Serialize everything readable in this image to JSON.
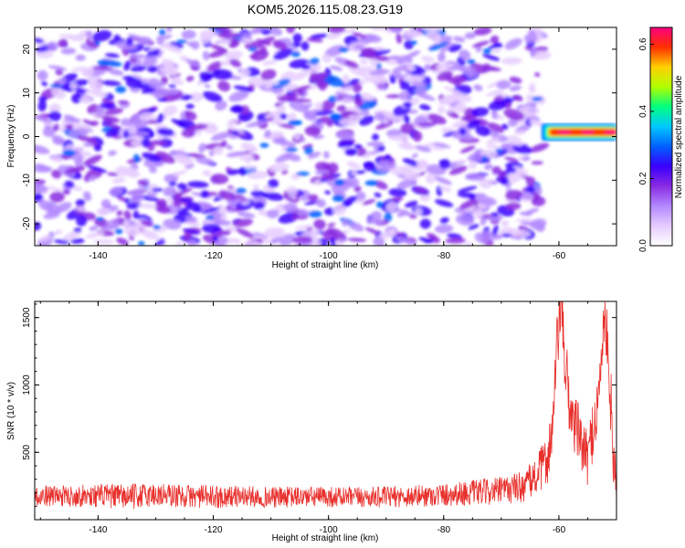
{
  "title": "KOM5.2026.115.08.23.G19",
  "colors": {
    "snr_line": "#e8302c",
    "spectrogram_background": "#ffffff",
    "colormap": [
      "#ffffff",
      "#e6ccff",
      "#b388ff",
      "#8a2be2",
      "#3a00ff",
      "#0060ff",
      "#00c8ff",
      "#00ff80",
      "#b0ff00",
      "#ffd000",
      "#ff3000",
      "#ff0080"
    ]
  },
  "chart_data": [
    {
      "type": "heatmap",
      "title": "KOM5.2026.115.08.23.G19",
      "xlabel": "Height of straight line (km)",
      "ylabel": "Frequency (Hz)",
      "xlim": [
        -151,
        -50
      ],
      "ylim": [
        -25,
        25
      ],
      "xticks": [
        -140,
        -120,
        -100,
        -80,
        -60
      ],
      "yticks": [
        -20,
        -10,
        0,
        10,
        20
      ],
      "x_tick_labels": [
        "-140",
        "-120",
        "-100",
        "-80",
        "-60"
      ],
      "y_tick_labels": [
        "-20",
        "-10",
        "0",
        "10",
        "20"
      ],
      "colorbar": {
        "label": "Normalized spectral amplitude",
        "range": [
          0.0,
          0.65
        ],
        "ticks": [
          0.0,
          0.2,
          0.4,
          0.6
        ],
        "tick_labels": [
          "0.0",
          "0.2",
          "0.4",
          "0.6"
        ]
      },
      "description_values": {
        "noise_level_range": [
          0.0,
          0.12
        ],
        "signal_band": {
          "x_range": [
            -63,
            -50
          ],
          "freq_range": [
            -1,
            3
          ],
          "peak_amplitude": 0.63
        },
        "blank_region_x_range": [
          -63,
          -50
        ]
      }
    },
    {
      "type": "line",
      "xlabel": "Height of straight line (km)",
      "ylabel": "SNR (10 * v/v)",
      "xlim": [
        -151,
        -50
      ],
      "ylim": [
        0,
        1620
      ],
      "xticks": [
        -140,
        -120,
        -100,
        -80,
        -60
      ],
      "yticks": [
        500,
        1000,
        1500
      ],
      "x_tick_labels": [
        "-140",
        "-120",
        "-100",
        "-80",
        "-60"
      ],
      "y_tick_labels": [
        "500",
        "1000",
        "1500"
      ],
      "series": [
        {
          "name": "SNR",
          "x": [
            -151,
            -145,
            -140,
            -135,
            -130,
            -125,
            -120,
            -115,
            -110,
            -105,
            -100,
            -95,
            -90,
            -85,
            -80,
            -75,
            -70,
            -66,
            -64,
            -62,
            -61,
            -60.5,
            -60,
            -59.5,
            -59,
            -58,
            -57,
            -56,
            -55,
            -54,
            -53,
            -52.5,
            -52,
            -51.5,
            -51,
            -50.5,
            -50
          ],
          "values": [
            180,
            175,
            180,
            170,
            185,
            175,
            170,
            175,
            165,
            170,
            170,
            165,
            170,
            175,
            185,
            200,
            215,
            250,
            320,
            450,
            700,
            1100,
            1500,
            1560,
            1200,
            800,
            700,
            550,
            450,
            700,
            900,
            1350,
            1450,
            1300,
            900,
            400,
            250
          ],
          "noise_amplitude": [
            90,
            90,
            100,
            110,
            110,
            100,
            100,
            90,
            90,
            90,
            90,
            90,
            90,
            95,
            100,
            110,
            120,
            140,
            170,
            220,
            300,
            350,
            300,
            250,
            300,
            300,
            280,
            250,
            230,
            280,
            300,
            300,
            250,
            250,
            300,
            250,
            200
          ]
        }
      ]
    }
  ]
}
